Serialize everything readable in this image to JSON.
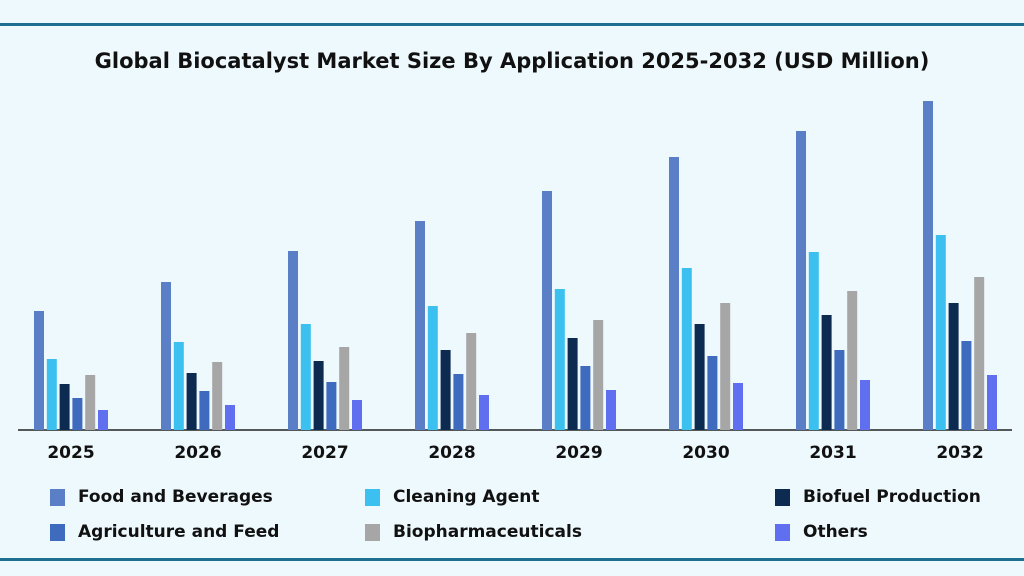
{
  "chart_data": {
    "type": "bar",
    "title": "Global Biocatalyst Market Size By Application 2025-2032 (USD Million)",
    "categories": [
      "2025",
      "2026",
      "2027",
      "2028",
      "2029",
      "2030",
      "2031",
      "2032"
    ],
    "series": [
      {
        "name": "Food and Beverages",
        "color": "#5b7fc7",
        "values": [
          119,
          148,
          179,
          209,
          239,
          273,
          299,
          329
        ]
      },
      {
        "name": "Cleaning Agent",
        "color": "#3cc0f0",
        "values": [
          71,
          88,
          106,
          124,
          141,
          162,
          178,
          195
        ]
      },
      {
        "name": "Biofuel Production",
        "color": "#0d2b50",
        "values": [
          46,
          57,
          69,
          80,
          92,
          106,
          115,
          127
        ]
      },
      {
        "name": "Agriculture and Feed",
        "color": "#3f6bbf",
        "values": [
          32,
          39,
          48,
          56,
          64,
          74,
          80,
          89
        ]
      },
      {
        "name": "Biopharmaceuticals",
        "color": "#a6a6a6",
        "values": [
          55,
          68,
          83,
          97,
          110,
          127,
          139,
          153
        ]
      },
      {
        "name": "Others",
        "color": "#5f6ff0",
        "values": [
          20,
          25,
          30,
          35,
          40,
          47,
          50,
          55
        ]
      }
    ]
  }
}
